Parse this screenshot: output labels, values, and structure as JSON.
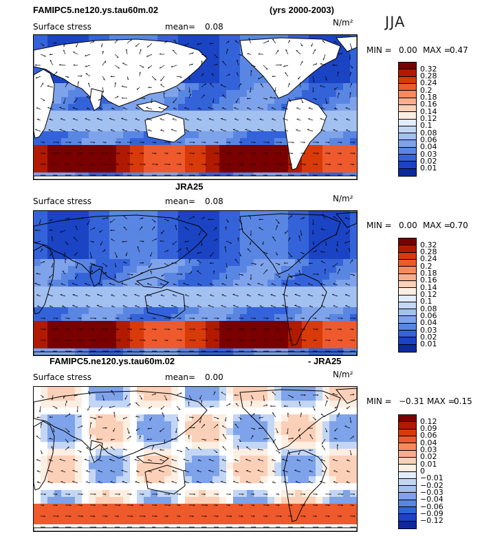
{
  "header": {
    "run_title": "FAMIPC5.ne120.ys.tau60m.02",
    "years": "(yrs 2000-2003)",
    "season": "JJA"
  },
  "colors": {
    "warm": [
      "#7a0000",
      "#b21a00",
      "#d93a0a",
      "#ee5a2b",
      "#f58a5e",
      "#f8ae8c",
      "#fbd0b8",
      "#fdeee2"
    ],
    "cool": [
      "#e2ecfb",
      "#c3d6f5",
      "#a2c0f0",
      "#7ea3ea",
      "#5a86e3",
      "#3463d9",
      "#1a44c4",
      "#0c2a9c",
      "#000e78"
    ]
  },
  "chart_data": [
    {
      "type": "heatmap",
      "panel_title": "",
      "variable": "Surface stress",
      "mean_label": "mean=",
      "mean": "0.08",
      "units": "N/m²",
      "range_text": {
        "min_label": "MIN =",
        "min": "0.00",
        "max_label": "MAX =",
        "max": "0.47"
      },
      "colorbar_levels": [
        "0.32",
        "0.28",
        "0.24",
        "0.2",
        "0.18",
        "0.16",
        "0.14",
        "0.12",
        "0.1",
        "0.08",
        "0.06",
        "0.04",
        "0.03",
        "0.02",
        "0.01"
      ],
      "projection": "global lat-lon map with vector overlay"
    },
    {
      "type": "heatmap",
      "panel_title": "JRA25",
      "variable": "Surface stress",
      "mean_label": "mean=",
      "mean": "0.08",
      "units": "N/m²",
      "range_text": {
        "min_label": "MIN =",
        "min": "0.00",
        "max_label": "MAX =",
        "max": "0.70"
      },
      "colorbar_levels": [
        "0.32",
        "0.28",
        "0.24",
        "0.2",
        "0.18",
        "0.16",
        "0.14",
        "0.12",
        "0.1",
        "0.08",
        "0.06",
        "0.04",
        "0.03",
        "0.02",
        "0.01"
      ],
      "projection": "global lat-lon map with vector overlay"
    },
    {
      "type": "heatmap",
      "panel_title_left": "FAMIPC5.ne120.ys.tau60m.02",
      "panel_title_right": "- JRA25",
      "variable": "Surface stress",
      "mean_label": "mean=",
      "mean": "0.00",
      "units": "N/m²",
      "range_text": {
        "min_label": "MIN =",
        "min": "−0.31",
        "max_label": "MAX =",
        "max": "0.15"
      },
      "colorbar_levels": [
        "0.12",
        "0.09",
        "0.06",
        "0.04",
        "0.03",
        "0.02",
        "0.01",
        "0",
        "−0.01",
        "−0.02",
        "−0.03",
        "−0.04",
        "−0.06",
        "−0.09",
        "−0.12"
      ],
      "projection": "global lat-lon map with vector overlay"
    }
  ]
}
